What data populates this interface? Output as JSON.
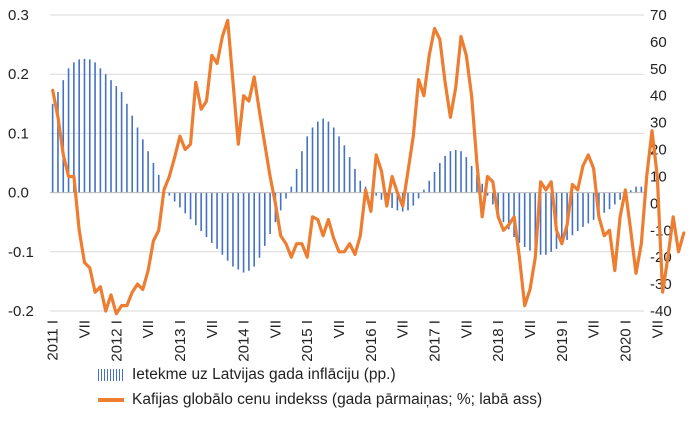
{
  "chart_data": {
    "type": "bar+line",
    "title": "",
    "x_labels": [
      "2011 I",
      "VII",
      "2012 I",
      "VII",
      "2013 I",
      "VII",
      "2014 I",
      "VII",
      "2015 I",
      "VII",
      "2016 I",
      "VII",
      "2017 I",
      "VII",
      "2018 I",
      "VII",
      "2019 I",
      "VII",
      "2020 I",
      "VII"
    ],
    "y_left": {
      "ticks": [
        "-0.2",
        "-0.1",
        "0.0",
        "0.1",
        "0.2",
        "0.3"
      ],
      "min": -0.2,
      "max": 0.3
    },
    "y_right": {
      "ticks": [
        "-40",
        "-30",
        "-20",
        "-10",
        "0",
        "10",
        "20",
        "30",
        "40",
        "50",
        "60",
        "70"
      ],
      "min": -40,
      "max": 70
    },
    "grid": true,
    "legend_position": "bottom",
    "series": [
      {
        "name": "Ietekme uz Latvijas gada inflāciju (pp.)",
        "type": "bar",
        "axis": "left",
        "color": "#4472C4",
        "values": [
          0.15,
          0.17,
          0.19,
          0.21,
          0.22,
          0.225,
          0.226,
          0.225,
          0.22,
          0.21,
          0.2,
          0.19,
          0.18,
          0.17,
          0.15,
          0.13,
          0.11,
          0.09,
          0.07,
          0.05,
          0.03,
          0.01,
          -0.005,
          -0.015,
          -0.025,
          -0.035,
          -0.045,
          -0.055,
          -0.065,
          -0.075,
          -0.085,
          -0.095,
          -0.105,
          -0.115,
          -0.125,
          -0.13,
          -0.135,
          -0.132,
          -0.125,
          -0.11,
          -0.09,
          -0.07,
          -0.05,
          -0.03,
          -0.01,
          0.01,
          0.04,
          0.07,
          0.095,
          0.11,
          0.12,
          0.125,
          0.12,
          0.11,
          0.095,
          0.08,
          0.06,
          0.04,
          0.02,
          0.01,
          0.0,
          -0.005,
          -0.012,
          -0.02,
          -0.026,
          -0.03,
          -0.032,
          -0.03,
          -0.022,
          -0.01,
          0.005,
          0.02,
          0.035,
          0.05,
          0.062,
          0.07,
          0.072,
          0.07,
          0.06,
          0.045,
          0.03,
          0.015,
          -0.005,
          -0.02,
          -0.035,
          -0.05,
          -0.062,
          -0.075,
          -0.085,
          -0.092,
          -0.098,
          -0.102,
          -0.105,
          -0.105,
          -0.1,
          -0.095,
          -0.088,
          -0.08,
          -0.072,
          -0.065,
          -0.058,
          -0.052,
          -0.046,
          -0.04,
          -0.034,
          -0.028,
          -0.02,
          -0.012,
          -0.004,
          0.004,
          0.01,
          0.01
        ]
      },
      {
        "name": "Kafijas globālo cenu indekss (gada pārmaiņas; %; labā ass)",
        "type": "line",
        "axis": "right",
        "color": "#ED7D31",
        "values": [
          42,
          32,
          18,
          10,
          10,
          -10,
          -22,
          -24,
          -33,
          -31,
          -40,
          -34,
          -41,
          -38,
          -38,
          -33,
          -30,
          -32,
          -25,
          -14,
          -10,
          5,
          10,
          17,
          25,
          20,
          22,
          45,
          35,
          38,
          55,
          52,
          62,
          68,
          45,
          22,
          40,
          38,
          47,
          34,
          22,
          10,
          0,
          -12,
          -15,
          -20,
          -15,
          -15,
          -20,
          -5,
          -6,
          -12,
          -6,
          -13,
          -18,
          -18,
          -15,
          -19,
          -12,
          5,
          -3,
          18,
          12,
          -1,
          10,
          4,
          -1,
          12,
          25,
          46,
          40,
          55,
          65,
          61,
          45,
          32,
          43,
          62,
          55,
          40,
          15,
          -5,
          10,
          8,
          -5,
          -10,
          -8,
          -5,
          -20,
          -38,
          -32,
          -20,
          8,
          5,
          8,
          -10,
          -15,
          -8,
          7,
          5,
          14,
          18,
          13,
          -5,
          -12,
          -10,
          -25,
          -5,
          5,
          -10,
          -26,
          -15,
          10,
          27,
          10,
          -33,
          -20,
          -5,
          -18,
          -11
        ]
      }
    ]
  }
}
